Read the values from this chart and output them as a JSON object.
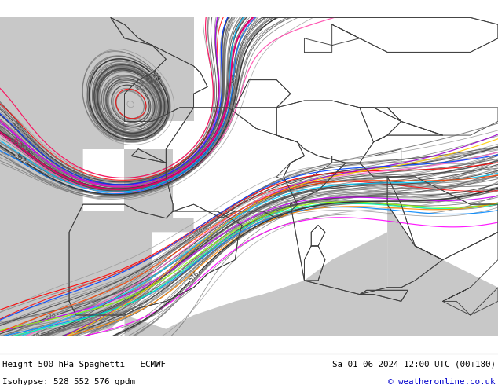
{
  "title_left": "Height 500 hPa Spaghetti   ECMWF",
  "title_right": "Sa 01-06-2024 12:00 UTC (00+180)",
  "subtitle_left": "Isohypse: 528 552 576 gpdm",
  "subtitle_right": "© weatheronline.co.uk",
  "footer_bg": "#d8f0b0",
  "footer_text_color": "#000000",
  "footer_right_color": "#0000cc",
  "fig_width": 6.34,
  "fig_height": 4.9,
  "dpi": 100,
  "map_bg_land": "#c8f0a0",
  "map_bg_sea": "#c8c8c8",
  "country_border_color": "#303030",
  "coast_color": "#303030"
}
